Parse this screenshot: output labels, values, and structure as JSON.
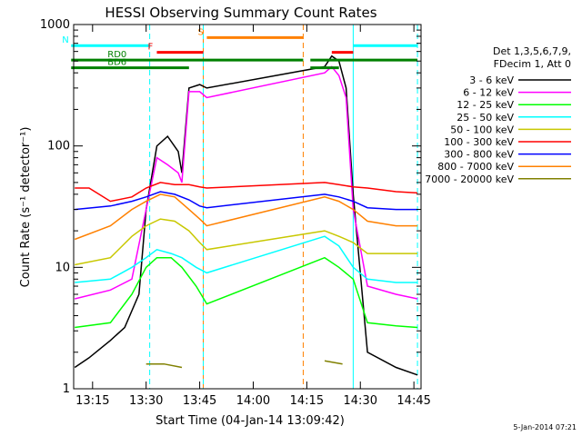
{
  "chart_data": {
    "type": "line",
    "title": "HESSI Observing Summary Count Rates",
    "xlabel": "Start Time (04-Jan-14 13:09:42)",
    "ylabel": "Count Rate (s⁻¹ detector⁻¹)",
    "ylog": true,
    "ylim": [
      1,
      1000
    ],
    "xlim": [
      "13:09:42",
      "14:47:00"
    ],
    "x_ticks": [
      "13:15",
      "13:30",
      "13:45",
      "14:00",
      "14:15",
      "14:30",
      "14:45"
    ],
    "y_ticks": [
      "1",
      "10",
      "100",
      "1000"
    ],
    "legend_header": [
      "Det 1,3,5,6,7,9,",
      "FDecim 1, Att 0"
    ],
    "legend_position": "right",
    "date_stamp": "5-Jan-2014 07:21",
    "series": [
      {
        "name": "3 - 6 keV",
        "color": "#000000",
        "x": [
          "13:10",
          "13:14",
          "13:20",
          "13:24",
          "13:28",
          "13:30",
          "13:33",
          "13:36",
          "13:39",
          "13:40",
          "13:42",
          "13:45",
          "13:47",
          "14:20",
          "14:22",
          "14:24",
          "14:26",
          "14:28",
          "14:32",
          "14:40",
          "14:46"
        ],
        "y": [
          1.5,
          1.8,
          2.5,
          3.2,
          6,
          30,
          100,
          120,
          90,
          60,
          300,
          320,
          300,
          450,
          550,
          500,
          300,
          40,
          2,
          1.5,
          1.3
        ]
      },
      {
        "name": "6 - 12 keV",
        "color": "#ff00ff",
        "x": [
          "13:10",
          "13:20",
          "13:26",
          "13:30",
          "13:33",
          "13:36",
          "13:39",
          "13:40",
          "13:42",
          "13:45",
          "13:47",
          "14:20",
          "14:22",
          "14:24",
          "14:26",
          "14:28",
          "14:32",
          "14:40",
          "14:46"
        ],
        "y": [
          5.5,
          6.5,
          8,
          30,
          80,
          70,
          60,
          50,
          280,
          280,
          250,
          400,
          450,
          380,
          250,
          30,
          7,
          6,
          5.5
        ]
      },
      {
        "name": "12 - 25 keV",
        "color": "#00ff00",
        "x": [
          "13:10",
          "13:20",
          "13:26",
          "13:30",
          "13:33",
          "13:37",
          "13:40",
          "13:44",
          "13:47",
          "14:20",
          "14:24",
          "14:28",
          "14:32",
          "14:40",
          "14:46"
        ],
        "y": [
          3.2,
          3.5,
          6,
          10,
          12,
          12,
          10,
          7,
          5,
          12,
          10,
          8,
          3.5,
          3.3,
          3.2
        ]
      },
      {
        "name": "25 - 50 keV",
        "color": "#00ffff",
        "x": [
          "13:10",
          "13:20",
          "13:26",
          "13:30",
          "13:33",
          "13:37",
          "13:40",
          "13:44",
          "13:47",
          "14:20",
          "14:24",
          "14:28",
          "14:32",
          "14:40",
          "14:46"
        ],
        "y": [
          7.5,
          8,
          10,
          12,
          14,
          13,
          12,
          10,
          9,
          18,
          15,
          10,
          8,
          7.5,
          7.5
        ]
      },
      {
        "name": "50 - 100 keV",
        "color": "#c8c800",
        "x": [
          "13:10",
          "13:20",
          "13:26",
          "13:30",
          "13:34",
          "13:38",
          "13:42",
          "13:45",
          "13:47",
          "14:20",
          "14:24",
          "14:28",
          "14:32",
          "14:40",
          "14:46"
        ],
        "y": [
          10.5,
          12,
          18,
          22,
          25,
          24,
          20,
          16,
          14,
          20,
          18,
          16,
          13,
          13,
          13
        ]
      },
      {
        "name": "100 - 300 keV",
        "color": "#ff0000",
        "x": [
          "13:10",
          "13:14",
          "13:20",
          "13:26",
          "13:30",
          "13:34",
          "13:38",
          "13:42",
          "13:45",
          "13:47",
          "14:20",
          "14:24",
          "14:28",
          "14:32",
          "14:40",
          "14:46"
        ],
        "y": [
          45,
          45,
          35,
          38,
          45,
          50,
          48,
          48,
          46,
          45,
          50,
          48,
          46,
          45,
          42,
          41
        ]
      },
      {
        "name": "300 - 800 keV",
        "color": "#0000ff",
        "x": [
          "13:10",
          "13:20",
          "13:26",
          "13:30",
          "13:34",
          "13:38",
          "13:42",
          "13:45",
          "13:47",
          "14:20",
          "14:24",
          "14:28",
          "14:32",
          "14:40",
          "14:46"
        ],
        "y": [
          30,
          32,
          35,
          38,
          42,
          40,
          36,
          32,
          31,
          40,
          38,
          35,
          31,
          30,
          30
        ]
      },
      {
        "name": "800 - 7000 keV",
        "color": "#ff8000",
        "x": [
          "13:10",
          "13:20",
          "13:26",
          "13:30",
          "13:34",
          "13:38",
          "13:42",
          "13:45",
          "13:47",
          "14:20",
          "14:24",
          "14:28",
          "14:32",
          "14:40",
          "14:46"
        ],
        "y": [
          17,
          22,
          30,
          35,
          40,
          38,
          30,
          25,
          22,
          38,
          35,
          30,
          24,
          22,
          22
        ]
      },
      {
        "name": "7000 - 20000 keV",
        "color": "#808000",
        "x": [
          "13:30",
          "13:35",
          "13:40",
          "14:20",
          "14:25"
        ],
        "y": [
          1.6,
          1.6,
          1.5,
          1.7,
          1.6
        ]
      }
    ],
    "flags": [
      {
        "label": "N",
        "color": "#00ffff",
        "segments": [
          [
            "13:09",
            "13:31"
          ],
          [
            "14:28",
            "14:46"
          ]
        ],
        "level": 670
      },
      {
        "label": "F",
        "color": "#ff0000",
        "segments": [
          [
            "13:33",
            "13:46"
          ],
          [
            "14:22",
            "14:28"
          ]
        ],
        "level": 590
      },
      {
        "label": "S",
        "color": "#ff8000",
        "segments": [
          [
            "13:47",
            "14:14"
          ]
        ],
        "level": 780
      },
      {
        "label": "RD0",
        "color": "#008000",
        "segments": [
          [
            "13:09",
            "14:14"
          ],
          [
            "14:16",
            "14:46"
          ]
        ],
        "level": 510
      },
      {
        "label": "BD6",
        "color": "#008000",
        "segments": [
          [
            "13:09",
            "13:42"
          ],
          [
            "14:16",
            "14:24"
          ]
        ],
        "level": 440
      }
    ],
    "vertical_lines": [
      {
        "time": "13:31",
        "color": "#00ffff",
        "style": "dashed"
      },
      {
        "time": "13:46",
        "color": "#ff8000",
        "style": "solid"
      },
      {
        "time": "13:46",
        "color": "#00ffff",
        "style": "dashed"
      },
      {
        "time": "14:14",
        "color": "#ff8000",
        "style": "dashed"
      },
      {
        "time": "14:28",
        "color": "#00ffff",
        "style": "solid"
      },
      {
        "time": "14:46",
        "color": "#00ffff",
        "style": "dashed"
      }
    ],
    "data_gaps": [
      [
        "13:46",
        "14:14"
      ]
    ],
    "grid": false
  }
}
